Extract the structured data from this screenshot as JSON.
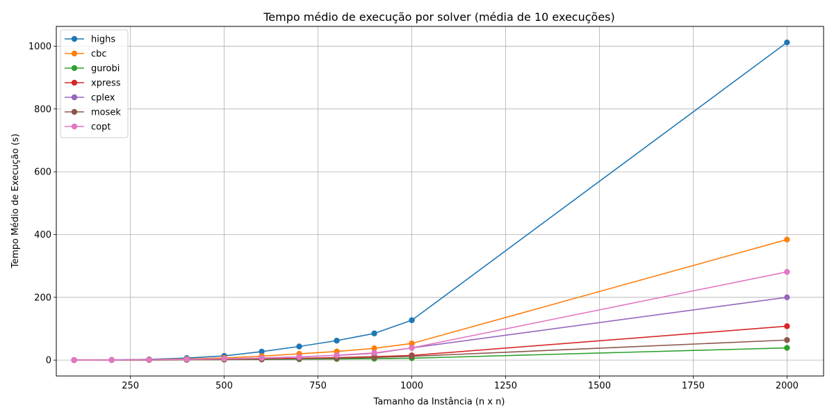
{
  "chart_data": {
    "type": "line",
    "title": "Tempo médio de execução por solver (média de 10 execuções)",
    "xlabel": "Tamanho da Instância (n x n)",
    "ylabel": "Tempo Médio de Execução (s)",
    "x": [
      100,
      200,
      300,
      400,
      500,
      600,
      700,
      800,
      900,
      1000,
      2000
    ],
    "xlim": [
      52.5,
      2097.5
    ],
    "ylim": [
      -50.6,
      1063.0
    ],
    "xticks": [
      250,
      500,
      750,
      1000,
      1250,
      1500,
      1750,
      2000
    ],
    "yticks": [
      0,
      200,
      400,
      600,
      800,
      1000
    ],
    "grid": true,
    "legend_position": "upper-left",
    "marker": "circle",
    "series": [
      {
        "name": "highs",
        "color": "#1f77b4",
        "values": [
          0.2,
          0.8,
          2.5,
          6.5,
          13.5,
          27.0,
          43.5,
          62.0,
          85.0,
          127.0,
          1012.0
        ]
      },
      {
        "name": "cbc",
        "color": "#ff7f0e",
        "values": [
          0.1,
          0.5,
          1.5,
          3.5,
          7.0,
          12.5,
          20.0,
          27.5,
          37.5,
          53.0,
          384.0
        ]
      },
      {
        "name": "gurobi",
        "color": "#2ca02c",
        "values": [
          0.05,
          0.2,
          0.5,
          0.9,
          1.4,
          2.0,
          2.8,
          3.6,
          4.5,
          6.0,
          39.0
        ]
      },
      {
        "name": "xpress",
        "color": "#d62728",
        "values": [
          0.05,
          0.2,
          0.6,
          1.3,
          2.3,
          3.8,
          5.8,
          8.0,
          11.0,
          15.0,
          108.0
        ]
      },
      {
        "name": "cplex",
        "color": "#9467bd",
        "values": [
          0.1,
          0.4,
          1.0,
          2.2,
          4.0,
          6.8,
          10.5,
          15.0,
          21.5,
          39.0,
          200.0
        ]
      },
      {
        "name": "mosek",
        "color": "#8c564b",
        "values": [
          0.05,
          0.2,
          0.5,
          1.0,
          1.8,
          2.8,
          4.2,
          6.0,
          8.5,
          12.0,
          64.0
        ]
      },
      {
        "name": "copt",
        "color": "#e377c2",
        "values": [
          0.1,
          0.5,
          1.2,
          2.5,
          4.2,
          6.5,
          10.0,
          15.5,
          23.0,
          39.0,
          281.0
        ]
      }
    ]
  }
}
